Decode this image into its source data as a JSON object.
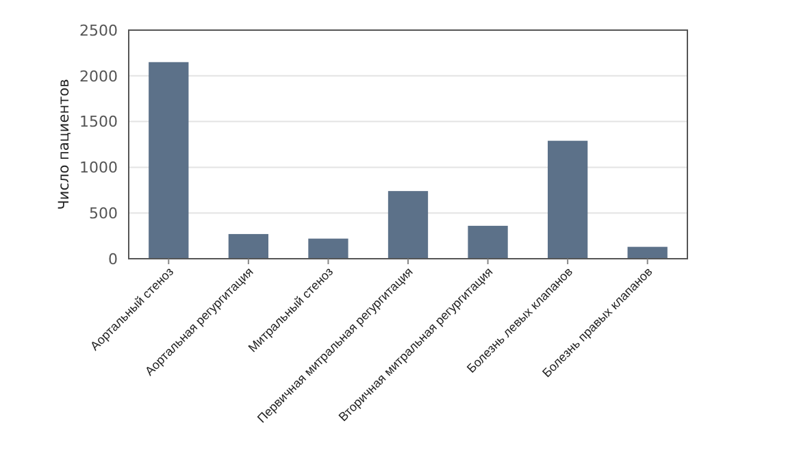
{
  "chart_data": {
    "type": "bar",
    "ylabel": "Число пациентов",
    "categories": [
      "Аортальный стеноз",
      "Аортальная регургитация",
      "Митральный стеноз",
      "Первичная митральная регургитация",
      "Вторичная митральная регургитация",
      "Болезнь левых клапанов",
      "Болезнь правых клапанов"
    ],
    "values": [
      2150,
      270,
      220,
      740,
      360,
      1290,
      130
    ],
    "color": "#5c7189",
    "ylim": [
      0,
      2500
    ],
    "yticks": [
      0,
      500,
      1000,
      1500,
      2000,
      2500
    ],
    "grid": "y"
  }
}
